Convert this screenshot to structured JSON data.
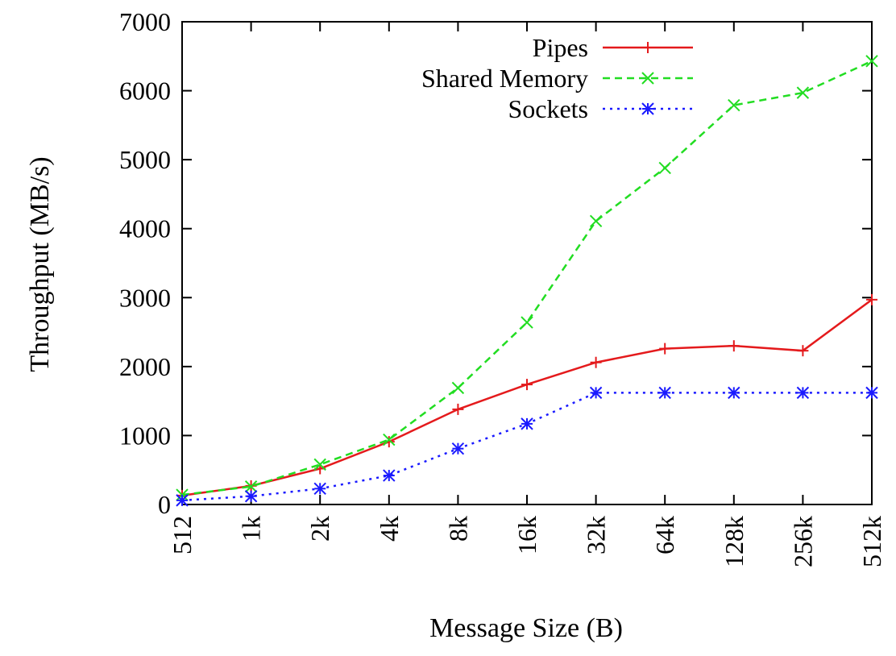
{
  "chart_data": {
    "type": "line",
    "title": "",
    "xlabel": "Message Size (B)",
    "ylabel": "Throughput (MB/s)",
    "categories": [
      "512",
      "1k",
      "2k",
      "4k",
      "8k",
      "16k",
      "32k",
      "64k",
      "128k",
      "256k",
      "512k"
    ],
    "yticks": [
      "0",
      "1000",
      "2000",
      "3000",
      "4000",
      "5000",
      "6000",
      "7000"
    ],
    "ylim": [
      0,
      7000
    ],
    "grid": false,
    "legend_position": "top-right",
    "series": [
      {
        "name": "Pipes",
        "color": "#e41a1c",
        "line_style": "solid",
        "marker": "plus",
        "values": [
          130,
          270,
          520,
          910,
          1380,
          1740,
          2060,
          2260,
          2300,
          2230,
          2970
        ]
      },
      {
        "name": "Shared Memory",
        "color": "#22dd22",
        "line_style": "dashed",
        "marker": "cross",
        "values": [
          140,
          260,
          580,
          940,
          1690,
          2640,
          4110,
          4880,
          5790,
          5970,
          6430
        ]
      },
      {
        "name": "Sockets",
        "color": "#1a1aff",
        "line_style": "dotted",
        "marker": "star",
        "values": [
          60,
          120,
          230,
          420,
          810,
          1170,
          1620,
          1620,
          1620,
          1620,
          1620
        ]
      }
    ]
  }
}
